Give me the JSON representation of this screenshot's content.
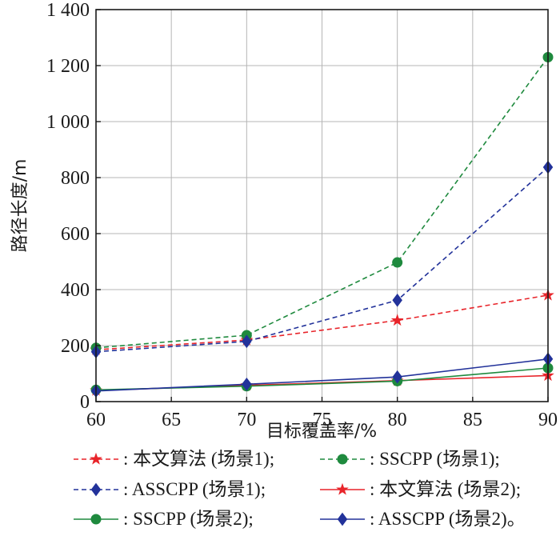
{
  "chart_data": {
    "type": "line",
    "xlabel": "目标覆盖率/%",
    "ylabel": "路径长度/m",
    "xlim": [
      60,
      90
    ],
    "ylim": [
      0,
      1400
    ],
    "x_ticks": [
      "60",
      "65",
      "70",
      "75",
      "80",
      "85",
      "90"
    ],
    "y_ticks": [
      "0",
      "200",
      "400",
      "600",
      "800",
      "1 000",
      "1 200",
      "1 400"
    ],
    "grid": true,
    "legend_position": "bottom",
    "x": [
      60,
      70,
      80,
      90
    ],
    "series": [
      {
        "name": "本文算法 (场景1);",
        "values": [
          185,
          220,
          290,
          380
        ],
        "color": "#e8242a",
        "dash": "dashed",
        "marker": "star"
      },
      {
        "name": "SSCPP (场景1);",
        "values": [
          192,
          237,
          497,
          1230
        ],
        "color": "#1f8a3e",
        "dash": "dashed",
        "marker": "circle"
      },
      {
        "name": "ASSCPP (场景1);",
        "values": [
          178,
          215,
          362,
          837
        ],
        "color": "#22329a",
        "dash": "dashed",
        "marker": "diamond"
      },
      {
        "name": "本文算法 (场景2);",
        "values": [
          40,
          58,
          75,
          93
        ],
        "color": "#e8242a",
        "dash": "solid",
        "marker": "star"
      },
      {
        "name": "SSCPP (场景2);",
        "values": [
          42,
          55,
          73,
          120
        ],
        "color": "#1f8a3e",
        "dash": "solid",
        "marker": "circle"
      },
      {
        "name": "ASSCPP (场景2)。",
        "values": [
          38,
          62,
          88,
          152
        ],
        "color": "#22329a",
        "dash": "solid",
        "marker": "diamond"
      }
    ]
  }
}
